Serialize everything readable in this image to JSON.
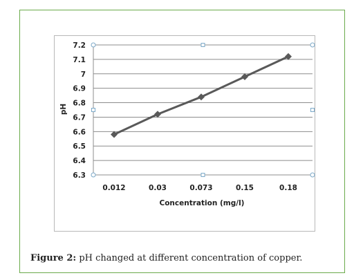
{
  "chart_data": {
    "type": "line",
    "categories": [
      "0.012",
      "0.03",
      "0.073",
      "0.15",
      "0.18"
    ],
    "series": [
      {
        "values": [
          6.58,
          6.72,
          6.84,
          6.98,
          7.12
        ]
      }
    ],
    "xlabel": "Concentration (mg/l)",
    "ylabel": "pH",
    "ylim": [
      6.3,
      7.2
    ],
    "yticks": [
      "6.3",
      "6.4",
      "6.5",
      "6.6",
      "6.7",
      "6.8",
      "6.9",
      "7",
      "7.1",
      "7.2"
    ],
    "grid": "horizontal",
    "marker": "diamond",
    "colors": {
      "series": "#595959",
      "grid": "#8c8c8c",
      "axis": "#8c8c8c"
    }
  },
  "caption": {
    "label": "Figure 2:",
    "text": " pH changed at different concentration of copper."
  }
}
